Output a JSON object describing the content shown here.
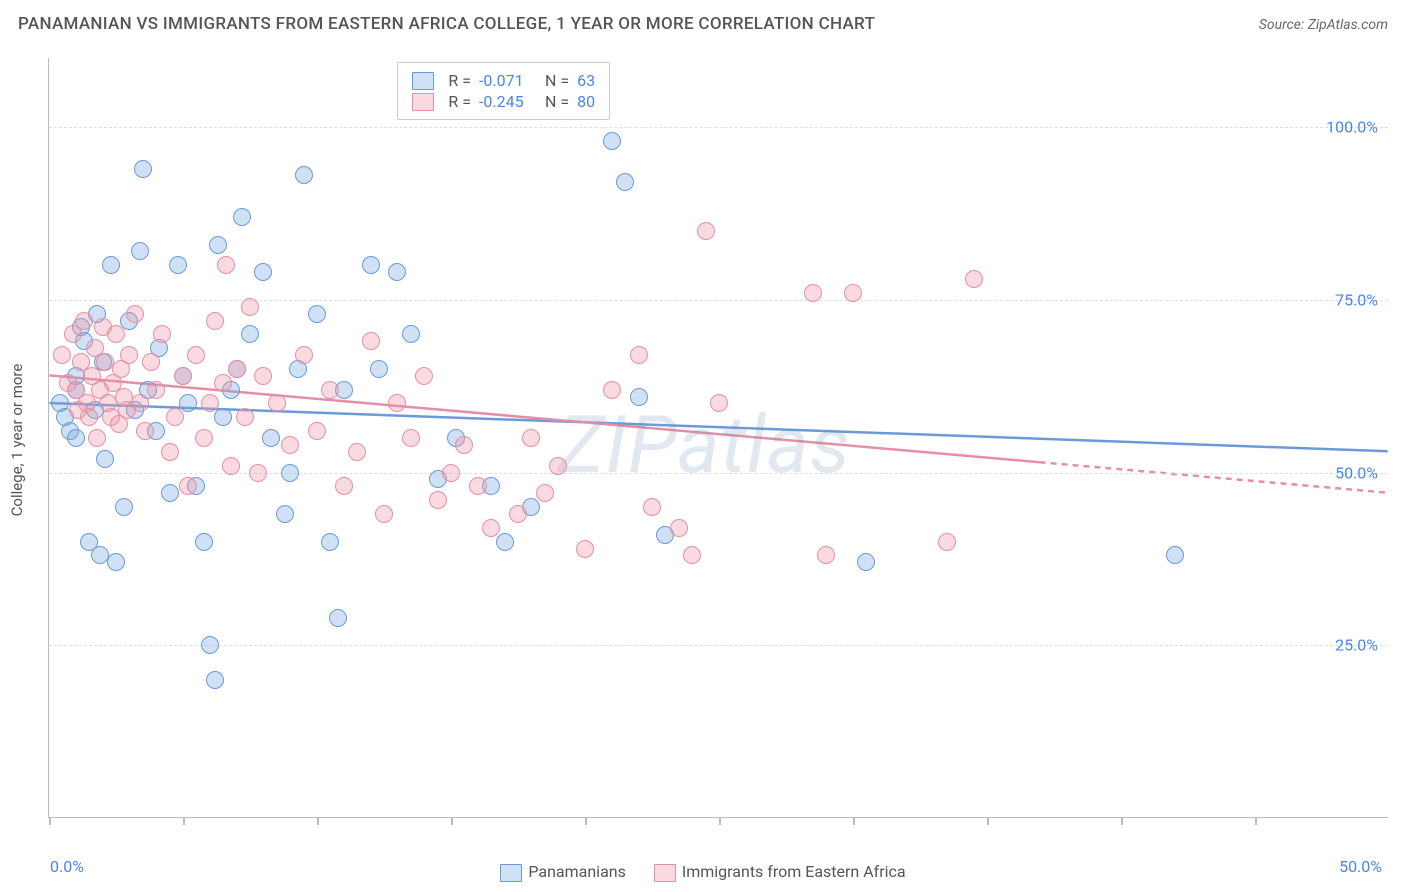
{
  "title": "PANAMANIAN VS IMMIGRANTS FROM EASTERN AFRICA COLLEGE, 1 YEAR OR MORE CORRELATION CHART",
  "source_label": "Source: ",
  "source_name": "ZipAtlas.com",
  "ylabel": "College, 1 year or more",
  "watermark": "ZIPatlas",
  "chart": {
    "type": "scatter",
    "xlim": [
      0,
      50
    ],
    "ylim": [
      0,
      110
    ],
    "xtick_positions": [
      0,
      5,
      10,
      15,
      20,
      25,
      30,
      35,
      40,
      45
    ],
    "xtick_labels_shown": {
      "0": "0.0%",
      "50": "50.0%"
    },
    "ytick_positions": [
      25,
      50,
      75,
      100
    ],
    "ytick_labels": [
      "25.0%",
      "50.0%",
      "75.0%",
      "100.0%"
    ],
    "grid_color": "#dddddd",
    "background": "#ffffff",
    "marker_radius": 9,
    "marker_stroke_width": 1.2,
    "trend_line_width": 2.5
  },
  "series": [
    {
      "name": "Panamanians",
      "fill": "rgba(120,165,225,0.35)",
      "stroke": "#6a9bd8",
      "R": "-0.071",
      "N": "63",
      "trend": {
        "x1": 0,
        "y1": 60,
        "x2": 50,
        "y2": 53,
        "dash_from_x": null
      },
      "points": [
        [
          0.4,
          60
        ],
        [
          0.6,
          58
        ],
        [
          0.8,
          56
        ],
        [
          1.0,
          62
        ],
        [
          1.0,
          64
        ],
        [
          1.0,
          55
        ],
        [
          1.2,
          71
        ],
        [
          1.3,
          69
        ],
        [
          1.5,
          40
        ],
        [
          1.7,
          59
        ],
        [
          1.8,
          73
        ],
        [
          2.0,
          66
        ],
        [
          2.1,
          52
        ],
        [
          2.3,
          80
        ],
        [
          2.5,
          37
        ],
        [
          2.8,
          45
        ],
        [
          3.0,
          72
        ],
        [
          3.2,
          59
        ],
        [
          3.4,
          82
        ],
        [
          3.5,
          94
        ],
        [
          3.7,
          62
        ],
        [
          4.0,
          56
        ],
        [
          4.1,
          68
        ],
        [
          4.5,
          47
        ],
        [
          4.8,
          80
        ],
        [
          5.0,
          64
        ],
        [
          5.2,
          60
        ],
        [
          5.5,
          48
        ],
        [
          5.8,
          40
        ],
        [
          6.0,
          25
        ],
        [
          6.2,
          20
        ],
        [
          6.3,
          83
        ],
        [
          6.5,
          58
        ],
        [
          6.8,
          62
        ],
        [
          7.0,
          65
        ],
        [
          7.2,
          87
        ],
        [
          7.5,
          70
        ],
        [
          8.0,
          79
        ],
        [
          8.3,
          55
        ],
        [
          8.8,
          44
        ],
        [
          9.0,
          50
        ],
        [
          9.3,
          65
        ],
        [
          9.5,
          93
        ],
        [
          10.0,
          73
        ],
        [
          10.5,
          40
        ],
        [
          10.8,
          29
        ],
        [
          11.0,
          62
        ],
        [
          12.0,
          80
        ],
        [
          12.3,
          65
        ],
        [
          13.0,
          79
        ],
        [
          13.5,
          70
        ],
        [
          14.5,
          49
        ],
        [
          15.2,
          55
        ],
        [
          16.5,
          48
        ],
        [
          17.0,
          40
        ],
        [
          18.0,
          45
        ],
        [
          21.0,
          98
        ],
        [
          21.5,
          92
        ],
        [
          22.0,
          61
        ],
        [
          23.0,
          41
        ],
        [
          30.5,
          37
        ],
        [
          42.0,
          38
        ],
        [
          1.9,
          38
        ]
      ]
    },
    {
      "name": "Immigrants from Eastern Africa",
      "fill": "rgba(240,150,170,0.35)",
      "stroke": "#e58fa5",
      "R": "-0.245",
      "N": "80",
      "trend": {
        "x1": 0,
        "y1": 64,
        "x2": 50,
        "y2": 47,
        "dash_from_x": 37
      },
      "points": [
        [
          0.5,
          67
        ],
        [
          0.7,
          63
        ],
        [
          0.9,
          70
        ],
        [
          1.0,
          62
        ],
        [
          1.1,
          59
        ],
        [
          1.2,
          66
        ],
        [
          1.3,
          72
        ],
        [
          1.4,
          60
        ],
        [
          1.5,
          58
        ],
        [
          1.6,
          64
        ],
        [
          1.7,
          68
        ],
        [
          1.8,
          55
        ],
        [
          1.9,
          62
        ],
        [
          2.0,
          71
        ],
        [
          2.1,
          66
        ],
        [
          2.2,
          60
        ],
        [
          2.3,
          58
        ],
        [
          2.4,
          63
        ],
        [
          2.5,
          70
        ],
        [
          2.6,
          57
        ],
        [
          2.7,
          65
        ],
        [
          2.8,
          61
        ],
        [
          2.9,
          59
        ],
        [
          3.0,
          67
        ],
        [
          3.2,
          73
        ],
        [
          3.4,
          60
        ],
        [
          3.6,
          56
        ],
        [
          3.8,
          66
        ],
        [
          4.0,
          62
        ],
        [
          4.2,
          70
        ],
        [
          4.5,
          53
        ],
        [
          4.7,
          58
        ],
        [
          5.0,
          64
        ],
        [
          5.2,
          48
        ],
        [
          5.5,
          67
        ],
        [
          5.8,
          55
        ],
        [
          6.0,
          60
        ],
        [
          6.2,
          72
        ],
        [
          6.5,
          63
        ],
        [
          6.6,
          80
        ],
        [
          6.8,
          51
        ],
        [
          7.0,
          65
        ],
        [
          7.3,
          58
        ],
        [
          7.5,
          74
        ],
        [
          7.8,
          50
        ],
        [
          8.0,
          64
        ],
        [
          8.5,
          60
        ],
        [
          9.0,
          54
        ],
        [
          9.5,
          67
        ],
        [
          10.0,
          56
        ],
        [
          10.5,
          62
        ],
        [
          11.0,
          48
        ],
        [
          11.5,
          53
        ],
        [
          12.0,
          69
        ],
        [
          12.5,
          44
        ],
        [
          13.0,
          60
        ],
        [
          13.5,
          55
        ],
        [
          14.0,
          64
        ],
        [
          14.5,
          46
        ],
        [
          15.0,
          50
        ],
        [
          15.5,
          54
        ],
        [
          16.0,
          48
        ],
        [
          16.5,
          42
        ],
        [
          17.5,
          44
        ],
        [
          18.0,
          55
        ],
        [
          18.5,
          47
        ],
        [
          19.0,
          51
        ],
        [
          20.0,
          39
        ],
        [
          21.0,
          62
        ],
        [
          22.0,
          67
        ],
        [
          23.5,
          42
        ],
        [
          24.0,
          38
        ],
        [
          24.5,
          85
        ],
        [
          25.0,
          60
        ],
        [
          28.5,
          76
        ],
        [
          29.0,
          38
        ],
        [
          30.0,
          76
        ],
        [
          33.5,
          40
        ],
        [
          34.5,
          78
        ],
        [
          22.5,
          45
        ]
      ]
    }
  ],
  "top_legend": {
    "R_label": "R =",
    "N_label": "N ="
  },
  "bottom_legend_labels": [
    "Panamanians",
    "Immigrants from Eastern Africa"
  ]
}
